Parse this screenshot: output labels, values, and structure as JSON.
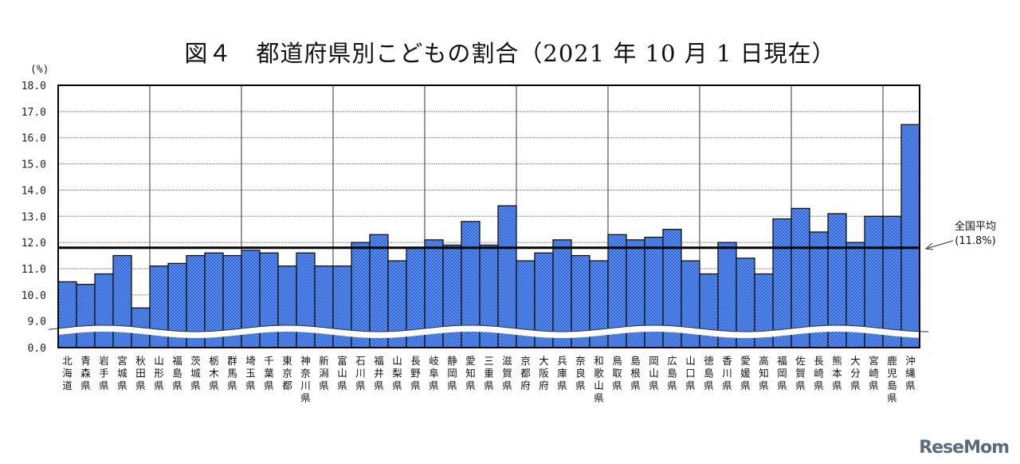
{
  "chart_data": {
    "type": "bar",
    "title": "図４　都道府県別こどもの割合（2021 年 10 月 1 日現在）",
    "ylabel": "(%)",
    "xlabel": "",
    "ylim": [
      0,
      18
    ],
    "axis_break": [
      0,
      9
    ],
    "yticks": [
      "0.0",
      "9.0",
      "10.0",
      "11.0",
      "12.0",
      "13.0",
      "14.0",
      "15.0",
      "16.0",
      "17.0",
      "18.0"
    ],
    "grid": true,
    "bar_color": "#4a7fe0",
    "categories": [
      "北海道",
      "青森県",
      "岩手県",
      "宮城県",
      "秋田県",
      "山形県",
      "福島県",
      "茨城県",
      "栃木県",
      "群馬県",
      "埼玉県",
      "千葉県",
      "東京都",
      "神奈川県",
      "新潟県",
      "富山県",
      "石川県",
      "福井県",
      "山梨県",
      "長野県",
      "岐阜県",
      "静岡県",
      "愛知県",
      "三重県",
      "滋賀県",
      "京都府",
      "大阪府",
      "兵庫県",
      "奈良県",
      "和歌山県",
      "鳥取県",
      "島根県",
      "岡山県",
      "広島県",
      "山口県",
      "徳島県",
      "香川県",
      "愛媛県",
      "高知県",
      "福岡県",
      "佐賀県",
      "長崎県",
      "熊本県",
      "大分県",
      "宮崎県",
      "鹿児島県",
      "沖縄県"
    ],
    "values": [
      10.5,
      10.4,
      10.8,
      11.5,
      9.5,
      11.1,
      11.2,
      11.5,
      11.6,
      11.5,
      11.7,
      11.6,
      11.1,
      11.6,
      11.1,
      11.1,
      12.0,
      12.3,
      11.3,
      11.8,
      12.1,
      11.9,
      12.8,
      11.9,
      13.4,
      11.3,
      11.6,
      12.1,
      11.5,
      11.3,
      12.3,
      12.1,
      12.2,
      12.5,
      11.3,
      10.8,
      12.0,
      11.4,
      10.8,
      12.9,
      13.3,
      12.4,
      13.1,
      12.0,
      13.0,
      13.0,
      16.5
    ],
    "reference_line": {
      "value": 11.8,
      "label": "全国平均",
      "value_label": "(11.8%)"
    }
  },
  "watermark": "ReseMom"
}
